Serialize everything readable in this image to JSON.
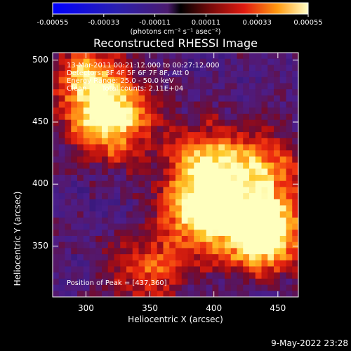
{
  "colorbar": {
    "tick_labels": [
      "-0.00055",
      "-0.00033",
      "-0.00011",
      "0.00011",
      "0.00033",
      "0.00055"
    ],
    "units": "(photons cm⁻² s⁻¹ asec⁻²)"
  },
  "chart_data": {
    "type": "heatmap",
    "title": "Reconstructed RHESSI Image",
    "xlabel": "Heliocentric X (arcsec)",
    "ylabel": "Heliocentric Y (arcsec)",
    "xlim": [
      274,
      466
    ],
    "ylim": [
      309,
      506
    ],
    "x_ticks": [
      300,
      350,
      400,
      450
    ],
    "y_ticks": [
      350,
      400,
      450,
      500
    ],
    "colorbar_range": [
      -0.00055,
      0.00055
    ],
    "peak": {
      "x": 437,
      "y": 360
    },
    "hot_regions": [
      {
        "x": 437,
        "y": 360,
        "intensity": 1.0
      },
      {
        "x": 390,
        "y": 380,
        "intensity": 0.8
      },
      {
        "x": 320,
        "y": 450,
        "intensity": 0.8
      },
      {
        "x": 300,
        "y": 485,
        "intensity": 0.6
      },
      {
        "x": 395,
        "y": 420,
        "intensity": 0.55
      },
      {
        "x": 440,
        "y": 410,
        "intensity": 0.5
      },
      {
        "x": 350,
        "y": 330,
        "intensity": 0.45
      }
    ]
  },
  "annotations": {
    "time": "13-Mar-2011 00:21:12.000 to 00:27:12.000",
    "detectors": "Detectors: 3F 4F 5F 6F 7F 8F, Att 0",
    "energy": "Energy Range: 25.0 - 50.0 keV",
    "method": "Clean",
    "counts": "Total counts: 2.11E+04",
    "peak_label": "Position of Peak = [437,360]"
  },
  "footer_date": "9-May-2022 23:28"
}
